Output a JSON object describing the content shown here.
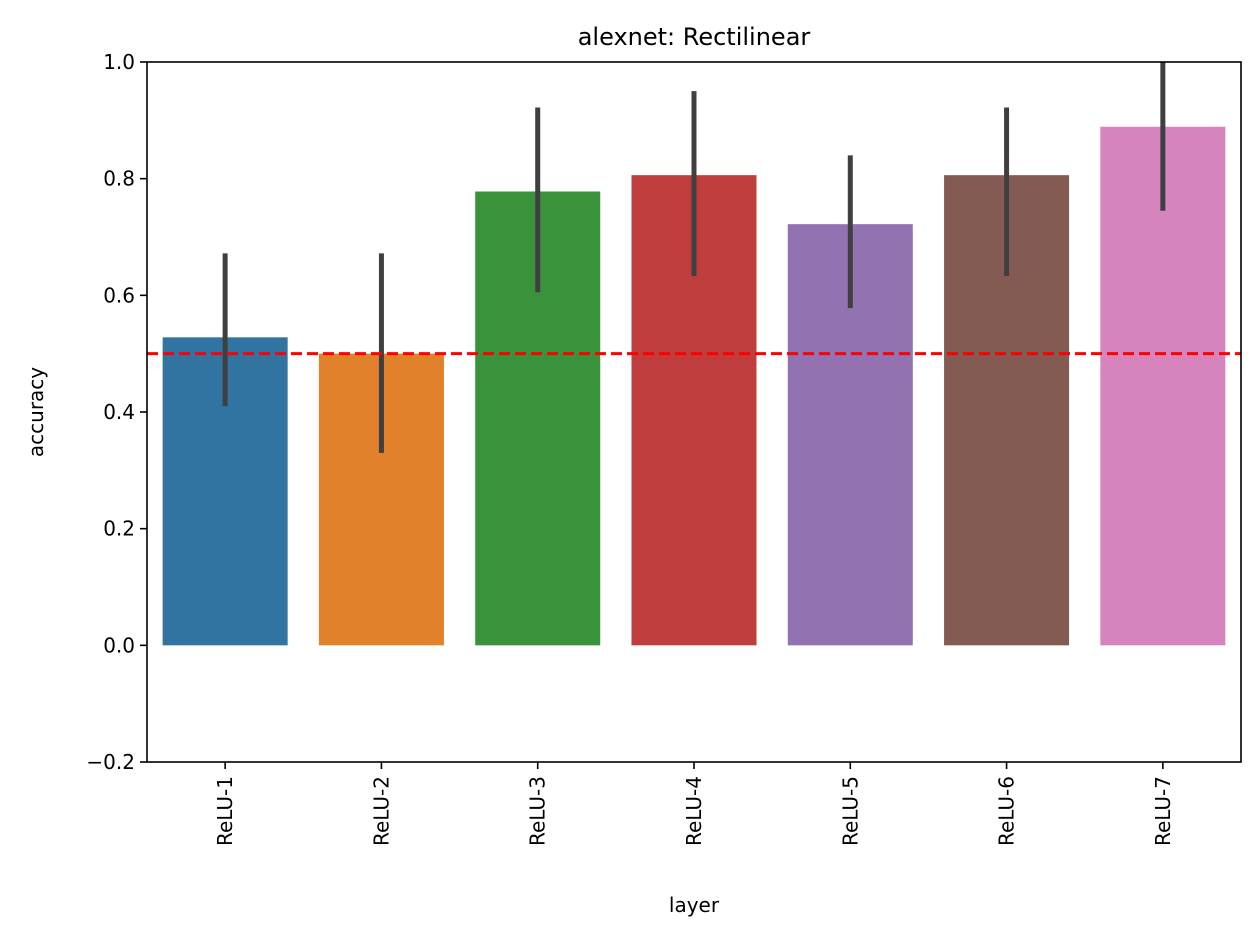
{
  "chart_data": {
    "type": "bar",
    "title": "alexnet: Rectilinear",
    "xlabel": "layer",
    "ylabel": "accuracy",
    "categories": [
      "ReLU-1",
      "ReLU-2",
      "ReLU-3",
      "ReLU-4",
      "ReLU-5",
      "ReLU-6",
      "ReLU-7"
    ],
    "values": [
      0.528,
      0.5,
      0.778,
      0.806,
      0.722,
      0.806,
      0.889
    ],
    "error_low": [
      0.41,
      0.33,
      0.605,
      0.633,
      0.578,
      0.633,
      0.745
    ],
    "error_high": [
      0.672,
      0.672,
      0.922,
      0.95,
      0.84,
      0.922,
      1.0
    ],
    "colors": [
      "#3274a1",
      "#e1812c",
      "#3a923a",
      "#c03d3e",
      "#9372b2",
      "#845b53",
      "#d684bd"
    ],
    "error_color": "#3f3f3f",
    "ylim": [
      -0.2,
      1.0
    ],
    "yticks": [
      -0.2,
      0.0,
      0.2,
      0.4,
      0.6,
      0.8,
      1.0
    ],
    "ytick_labels": [
      "−0.2",
      "0.0",
      "0.2",
      "0.4",
      "0.6",
      "0.8",
      "1.0"
    ],
    "reference_line": {
      "value": 0.5,
      "color": "#ff0000",
      "style": "dashed"
    },
    "grid": false,
    "legend": "none"
  }
}
